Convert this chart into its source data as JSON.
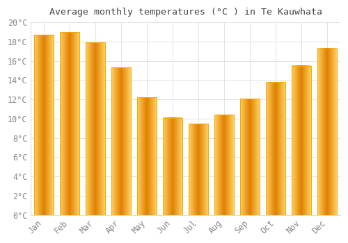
{
  "title": "Average monthly temperatures (°C ) in Te Kauwhata",
  "months": [
    "Jan",
    "Feb",
    "Mar",
    "Apr",
    "May",
    "Jun",
    "Jul",
    "Aug",
    "Sep",
    "Oct",
    "Nov",
    "Dec"
  ],
  "values": [
    18.7,
    19.0,
    17.9,
    15.3,
    12.2,
    10.1,
    9.5,
    10.4,
    12.1,
    13.8,
    15.5,
    17.3
  ],
  "bar_color_center": "#FFD060",
  "bar_color_edge": "#F5A800",
  "bar_color_dark": "#E08000",
  "background_color": "#FFFFFF",
  "grid_color": "#DDDDDD",
  "ylim": [
    0,
    20
  ],
  "yticks": [
    0,
    2,
    4,
    6,
    8,
    10,
    12,
    14,
    16,
    18,
    20
  ],
  "title_fontsize": 9.5,
  "tick_fontsize": 8.5,
  "tick_label_color": "#888888",
  "title_color": "#444444",
  "bar_width": 0.75
}
